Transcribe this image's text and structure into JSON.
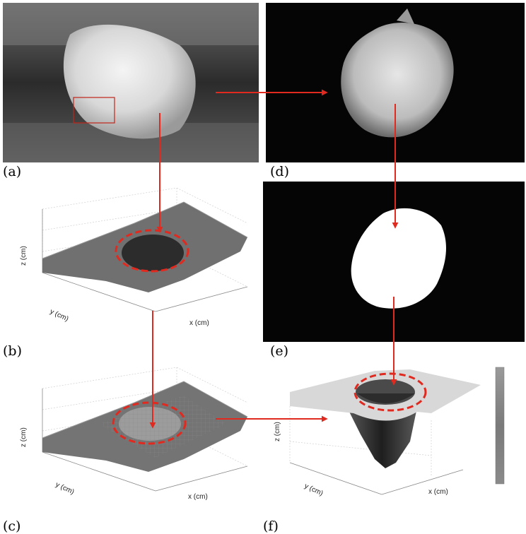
{
  "labels": {
    "a": "(a)",
    "b": "(b)",
    "c": "(c)",
    "d": "(d)",
    "e": "(e)",
    "f": "(f)"
  },
  "axes": {
    "x": "x (cm)",
    "y": "y (cm)",
    "z": "z (cm)"
  },
  "colors": {
    "arrow": "#e02a20",
    "dashed_ellipse": "#e02a20",
    "roi_box": "#c0261c",
    "surface": "#6e6e6e",
    "background_dark": "#050505",
    "mask_white": "#ffffff",
    "colorbar": "#8a8a8a"
  }
}
